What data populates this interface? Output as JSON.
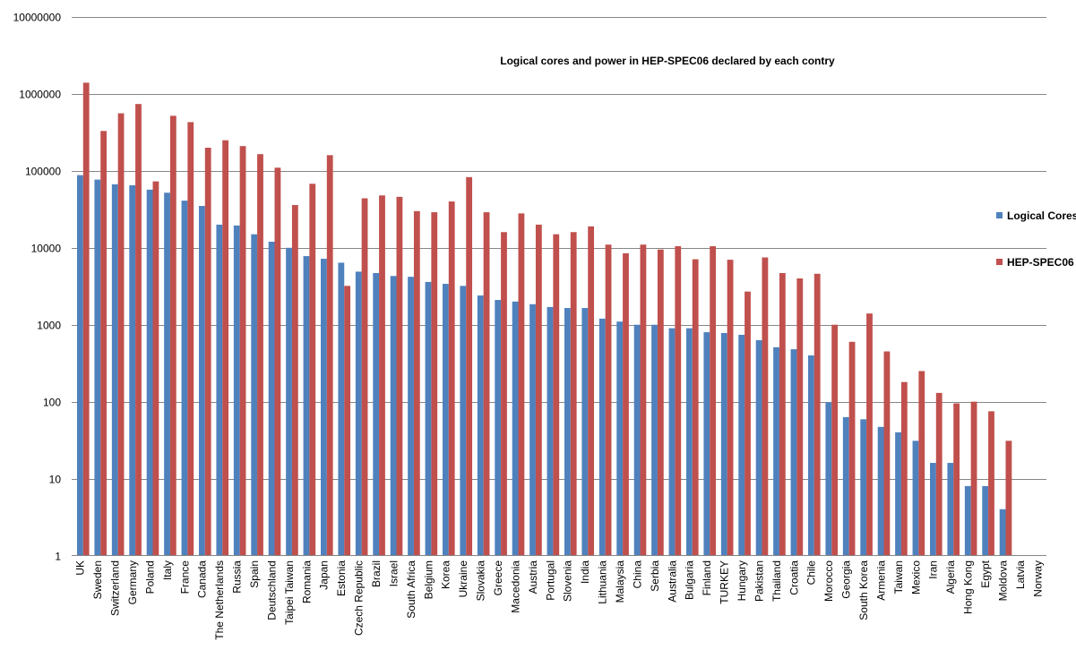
{
  "chart_data": {
    "type": "bar",
    "title": "Logical cores and power in HEP-SPEC06 declared by each contry",
    "xlabel": "",
    "ylabel": "",
    "yscale": "log",
    "ylim": [
      1,
      10000000
    ],
    "yticks": [
      "1",
      "10",
      "100",
      "1000",
      "10000",
      "100000",
      "1000000",
      "10000000"
    ],
    "ytick_values": [
      1,
      10,
      100,
      1000,
      10000,
      100000,
      1000000,
      10000000
    ],
    "grid": true,
    "legend_position": "right",
    "categories": [
      "UK",
      "Sweden",
      "Switzerland",
      "Germany",
      "Poland",
      "Italy",
      "France",
      "Canada",
      "The Netherlands",
      "Russia",
      "Spain",
      "Deutschland",
      "Taipei Taiwan",
      "Romania",
      "Japan",
      "Estonia",
      "Czech Republic",
      "Brazil",
      "Israel",
      "South Africa",
      "Belgium",
      "Korea",
      "Ukraine",
      "Slovakia",
      "Greece",
      "Macedonia",
      "Austria",
      "Portugal",
      "Slovenia",
      "India",
      "Lithuania",
      "Malaysia",
      "China",
      "Serbia",
      "Australia",
      "Bulgaria",
      "Finland",
      "TURKEY",
      "Hungary",
      "Pakistan",
      "Thailand",
      "Croatia",
      "Chile",
      "Morocco",
      "Georgia",
      "South Korea",
      "Armenia",
      "Taiwan",
      "Mexico",
      "Iran",
      "Algeria",
      "Hong Kong",
      "Egypt",
      "Moldova",
      "Latvia",
      "Norway"
    ],
    "series": [
      {
        "name": "Logical Cores",
        "color": "#4f81bd",
        "values": [
          88000,
          77000,
          67000,
          65000,
          57000,
          52000,
          41000,
          35000,
          20000,
          19500,
          15000,
          12000,
          10000,
          7800,
          7200,
          6400,
          4900,
          4700,
          4300,
          4200,
          3600,
          3400,
          3200,
          2400,
          2100,
          2000,
          1850,
          1700,
          1650,
          1650,
          1200,
          1100,
          1000,
          1000,
          900,
          900,
          800,
          780,
          740,
          630,
          510,
          480,
          400,
          98,
          63,
          59,
          47,
          40,
          31,
          16,
          16,
          8,
          8,
          4,
          0,
          0
        ]
      },
      {
        "name": "HEP-SPEC06",
        "color": "#c0504d",
        "values": [
          1400000,
          330000,
          560000,
          740000,
          73000,
          520000,
          430000,
          200000,
          250000,
          210000,
          165000,
          110000,
          36000,
          68000,
          160000,
          3200,
          44000,
          48000,
          46000,
          30000,
          29000,
          40000,
          83000,
          29000,
          16000,
          28000,
          20000,
          15000,
          16000,
          19000,
          11000,
          8500,
          11000,
          9500,
          10500,
          7100,
          10500,
          7000,
          2700,
          7500,
          4700,
          4000,
          4600,
          1000,
          600,
          1400,
          450,
          180,
          250,
          130,
          95,
          100,
          75,
          31,
          0,
          0
        ]
      }
    ]
  }
}
